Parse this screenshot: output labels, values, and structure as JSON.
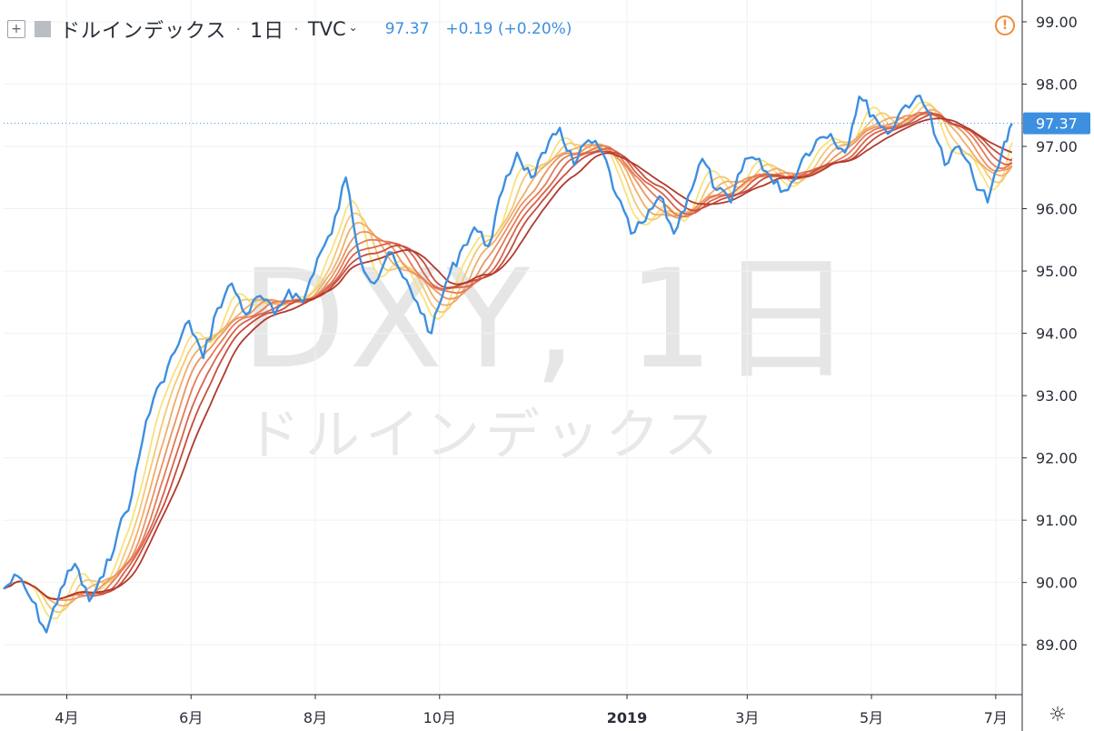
{
  "header": {
    "symbol": "ドルインデックス",
    "interval": "1日",
    "exchange": "TVC",
    "last_value": "97.37",
    "change": "+0.19 (+0.20%)"
  },
  "watermark": {
    "ticker": "DXY, 1日",
    "name": "ドルインデックス"
  },
  "price_label": "97.37",
  "colors": {
    "price_line": "#3d8fe0",
    "ribbon": [
      "#f7e27e",
      "#f4c873",
      "#f0ae6a",
      "#eb9462",
      "#e47c58",
      "#d9644c",
      "#c84d3e",
      "#b03a2c"
    ],
    "axis_text": "#2a2e39",
    "grid": "#eef1f4",
    "price_label_bg": "#3d8fe0"
  },
  "chart_data": {
    "type": "line",
    "y_axis": {
      "min": 88.2,
      "max": 99.35,
      "ticks": [
        "89.00",
        "90.00",
        "91.00",
        "92.00",
        "93.00",
        "94.00",
        "95.00",
        "96.00",
        "97.00",
        "98.00",
        "99.00"
      ]
    },
    "x_axis": {
      "ticks": [
        "4月",
        "6月",
        "8月",
        "10月",
        "2019",
        "3月",
        "5月",
        "7月"
      ],
      "tick_dates": [
        "2018-04-01",
        "2018-06-01",
        "2018-08-01",
        "2018-10-01",
        "2019-01-01",
        "2019-03-01",
        "2019-05-01",
        "2019-07-01"
      ]
    },
    "series": [
      {
        "values": [
          [
            "2018-03-01",
            89.9
          ],
          [
            "2018-03-08",
            90.1
          ],
          [
            "2018-03-15",
            89.7
          ],
          [
            "2018-03-22",
            89.2
          ],
          [
            "2018-03-29",
            89.9
          ],
          [
            "2018-04-05",
            90.3
          ],
          [
            "2018-04-12",
            89.7
          ],
          [
            "2018-04-19",
            90.1
          ],
          [
            "2018-04-26",
            90.8
          ],
          [
            "2018-05-03",
            91.4
          ],
          [
            "2018-05-10",
            92.6
          ],
          [
            "2018-05-17",
            93.2
          ],
          [
            "2018-05-24",
            93.7
          ],
          [
            "2018-05-31",
            94.2
          ],
          [
            "2018-06-07",
            93.6
          ],
          [
            "2018-06-14",
            94.4
          ],
          [
            "2018-06-21",
            94.8
          ],
          [
            "2018-06-28",
            94.3
          ],
          [
            "2018-07-05",
            94.6
          ],
          [
            "2018-07-12",
            94.3
          ],
          [
            "2018-07-19",
            94.7
          ],
          [
            "2018-07-26",
            94.5
          ],
          [
            "2018-08-02",
            95.2
          ],
          [
            "2018-08-09",
            95.6
          ],
          [
            "2018-08-16",
            96.5
          ],
          [
            "2018-08-23",
            95.2
          ],
          [
            "2018-08-30",
            94.8
          ],
          [
            "2018-09-06",
            95.3
          ],
          [
            "2018-09-13",
            94.9
          ],
          [
            "2018-09-20",
            94.5
          ],
          [
            "2018-09-27",
            94.0
          ],
          [
            "2018-10-04",
            94.8
          ],
          [
            "2018-10-11",
            95.3
          ],
          [
            "2018-10-18",
            95.7
          ],
          [
            "2018-10-25",
            95.4
          ],
          [
            "2018-11-01",
            96.3
          ],
          [
            "2018-11-08",
            96.9
          ],
          [
            "2018-11-15",
            96.5
          ],
          [
            "2018-11-22",
            96.9
          ],
          [
            "2018-11-29",
            97.3
          ],
          [
            "2018-12-06",
            96.7
          ],
          [
            "2018-12-13",
            97.1
          ],
          [
            "2018-12-20",
            96.9
          ],
          [
            "2018-12-27",
            96.2
          ],
          [
            "2019-01-03",
            95.6
          ],
          [
            "2019-01-10",
            95.8
          ],
          [
            "2019-01-17",
            96.2
          ],
          [
            "2019-01-24",
            95.6
          ],
          [
            "2019-01-31",
            96.2
          ],
          [
            "2019-02-07",
            96.8
          ],
          [
            "2019-02-14",
            96.3
          ],
          [
            "2019-02-21",
            96.1
          ],
          [
            "2019-02-28",
            96.8
          ],
          [
            "2019-03-07",
            96.8
          ],
          [
            "2019-03-14",
            96.4
          ],
          [
            "2019-03-21",
            96.3
          ],
          [
            "2019-03-28",
            96.8
          ],
          [
            "2019-04-04",
            97.1
          ],
          [
            "2019-04-11",
            97.2
          ],
          [
            "2019-04-18",
            96.9
          ],
          [
            "2019-04-25",
            97.8
          ],
          [
            "2019-05-02",
            97.5
          ],
          [
            "2019-05-09",
            97.2
          ],
          [
            "2019-05-16",
            97.6
          ],
          [
            "2019-05-23",
            97.8
          ],
          [
            "2019-05-30",
            97.5
          ],
          [
            "2019-06-06",
            96.7
          ],
          [
            "2019-06-13",
            97.0
          ],
          [
            "2019-06-20",
            96.5
          ],
          [
            "2019-06-27",
            96.1
          ],
          [
            "2019-07-04",
            96.9
          ],
          [
            "2019-07-09",
            97.37
          ]
        ]
      }
    ],
    "moving_averages": "8-line ribbon (yellow to dark red)"
  }
}
